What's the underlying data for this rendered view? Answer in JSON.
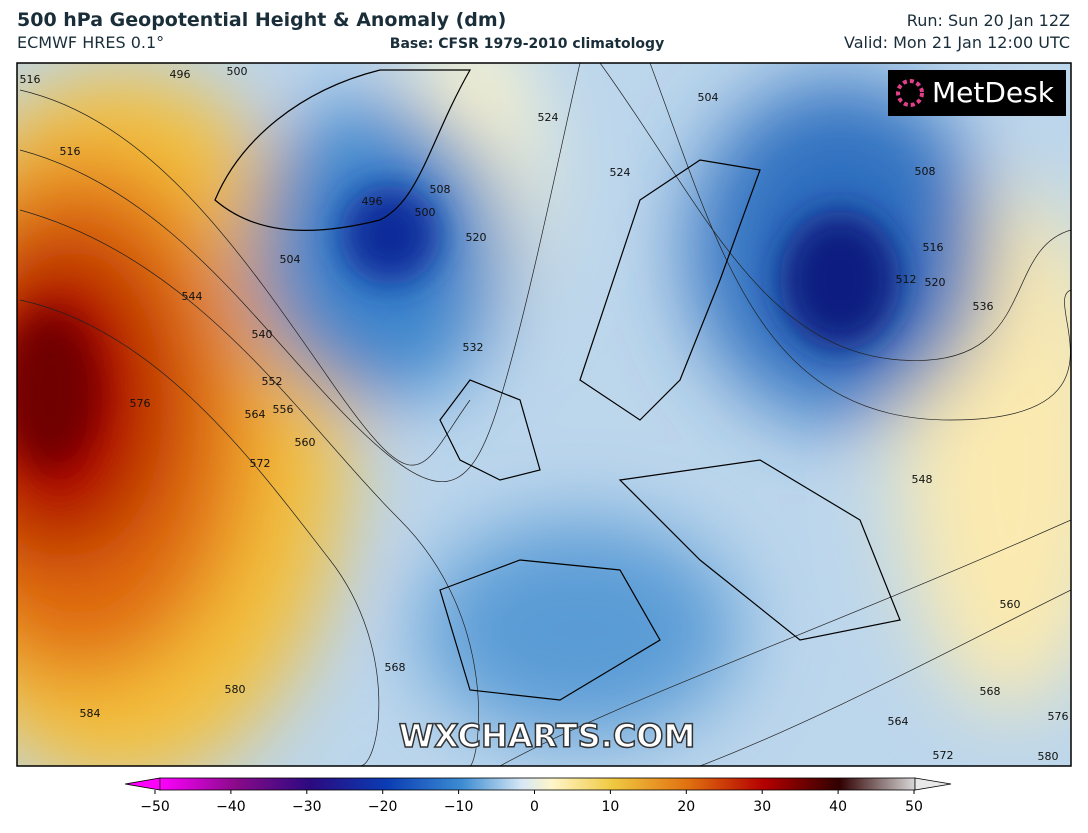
{
  "header": {
    "title": "500 hPa Geopotential Height & Anomaly (dm)",
    "model": "ECMWF HRES 0.1°",
    "base": "Base: CFSR 1979-2010 climatology",
    "run": "Run: Sun 20 Jan 12Z",
    "valid": "Valid: Mon 21 Jan 12:00 UTC"
  },
  "map": {
    "logo": "MetDesk",
    "watermark": "WXCHARTS.COM",
    "contour_labels": [
      "516",
      "496",
      "500",
      "516",
      "524",
      "504",
      "524",
      "508",
      "496",
      "500",
      "520",
      "504",
      "544",
      "540",
      "532",
      "552",
      "556",
      "576",
      "564",
      "560",
      "572",
      "508",
      "516",
      "512",
      "520",
      "536",
      "548",
      "560",
      "568",
      "580",
      "584",
      "564",
      "568",
      "576",
      "572",
      "580"
    ]
  },
  "colorbar": {
    "lim": [
      -50,
      50
    ],
    "ticks": [
      {
        "value": -50,
        "label": "−50"
      },
      {
        "value": -40,
        "label": "−40"
      },
      {
        "value": -30,
        "label": "−30"
      },
      {
        "value": -20,
        "label": "−20"
      },
      {
        "value": -10,
        "label": "−10"
      },
      0,
      10,
      20,
      30,
      40,
      50
    ]
  }
}
